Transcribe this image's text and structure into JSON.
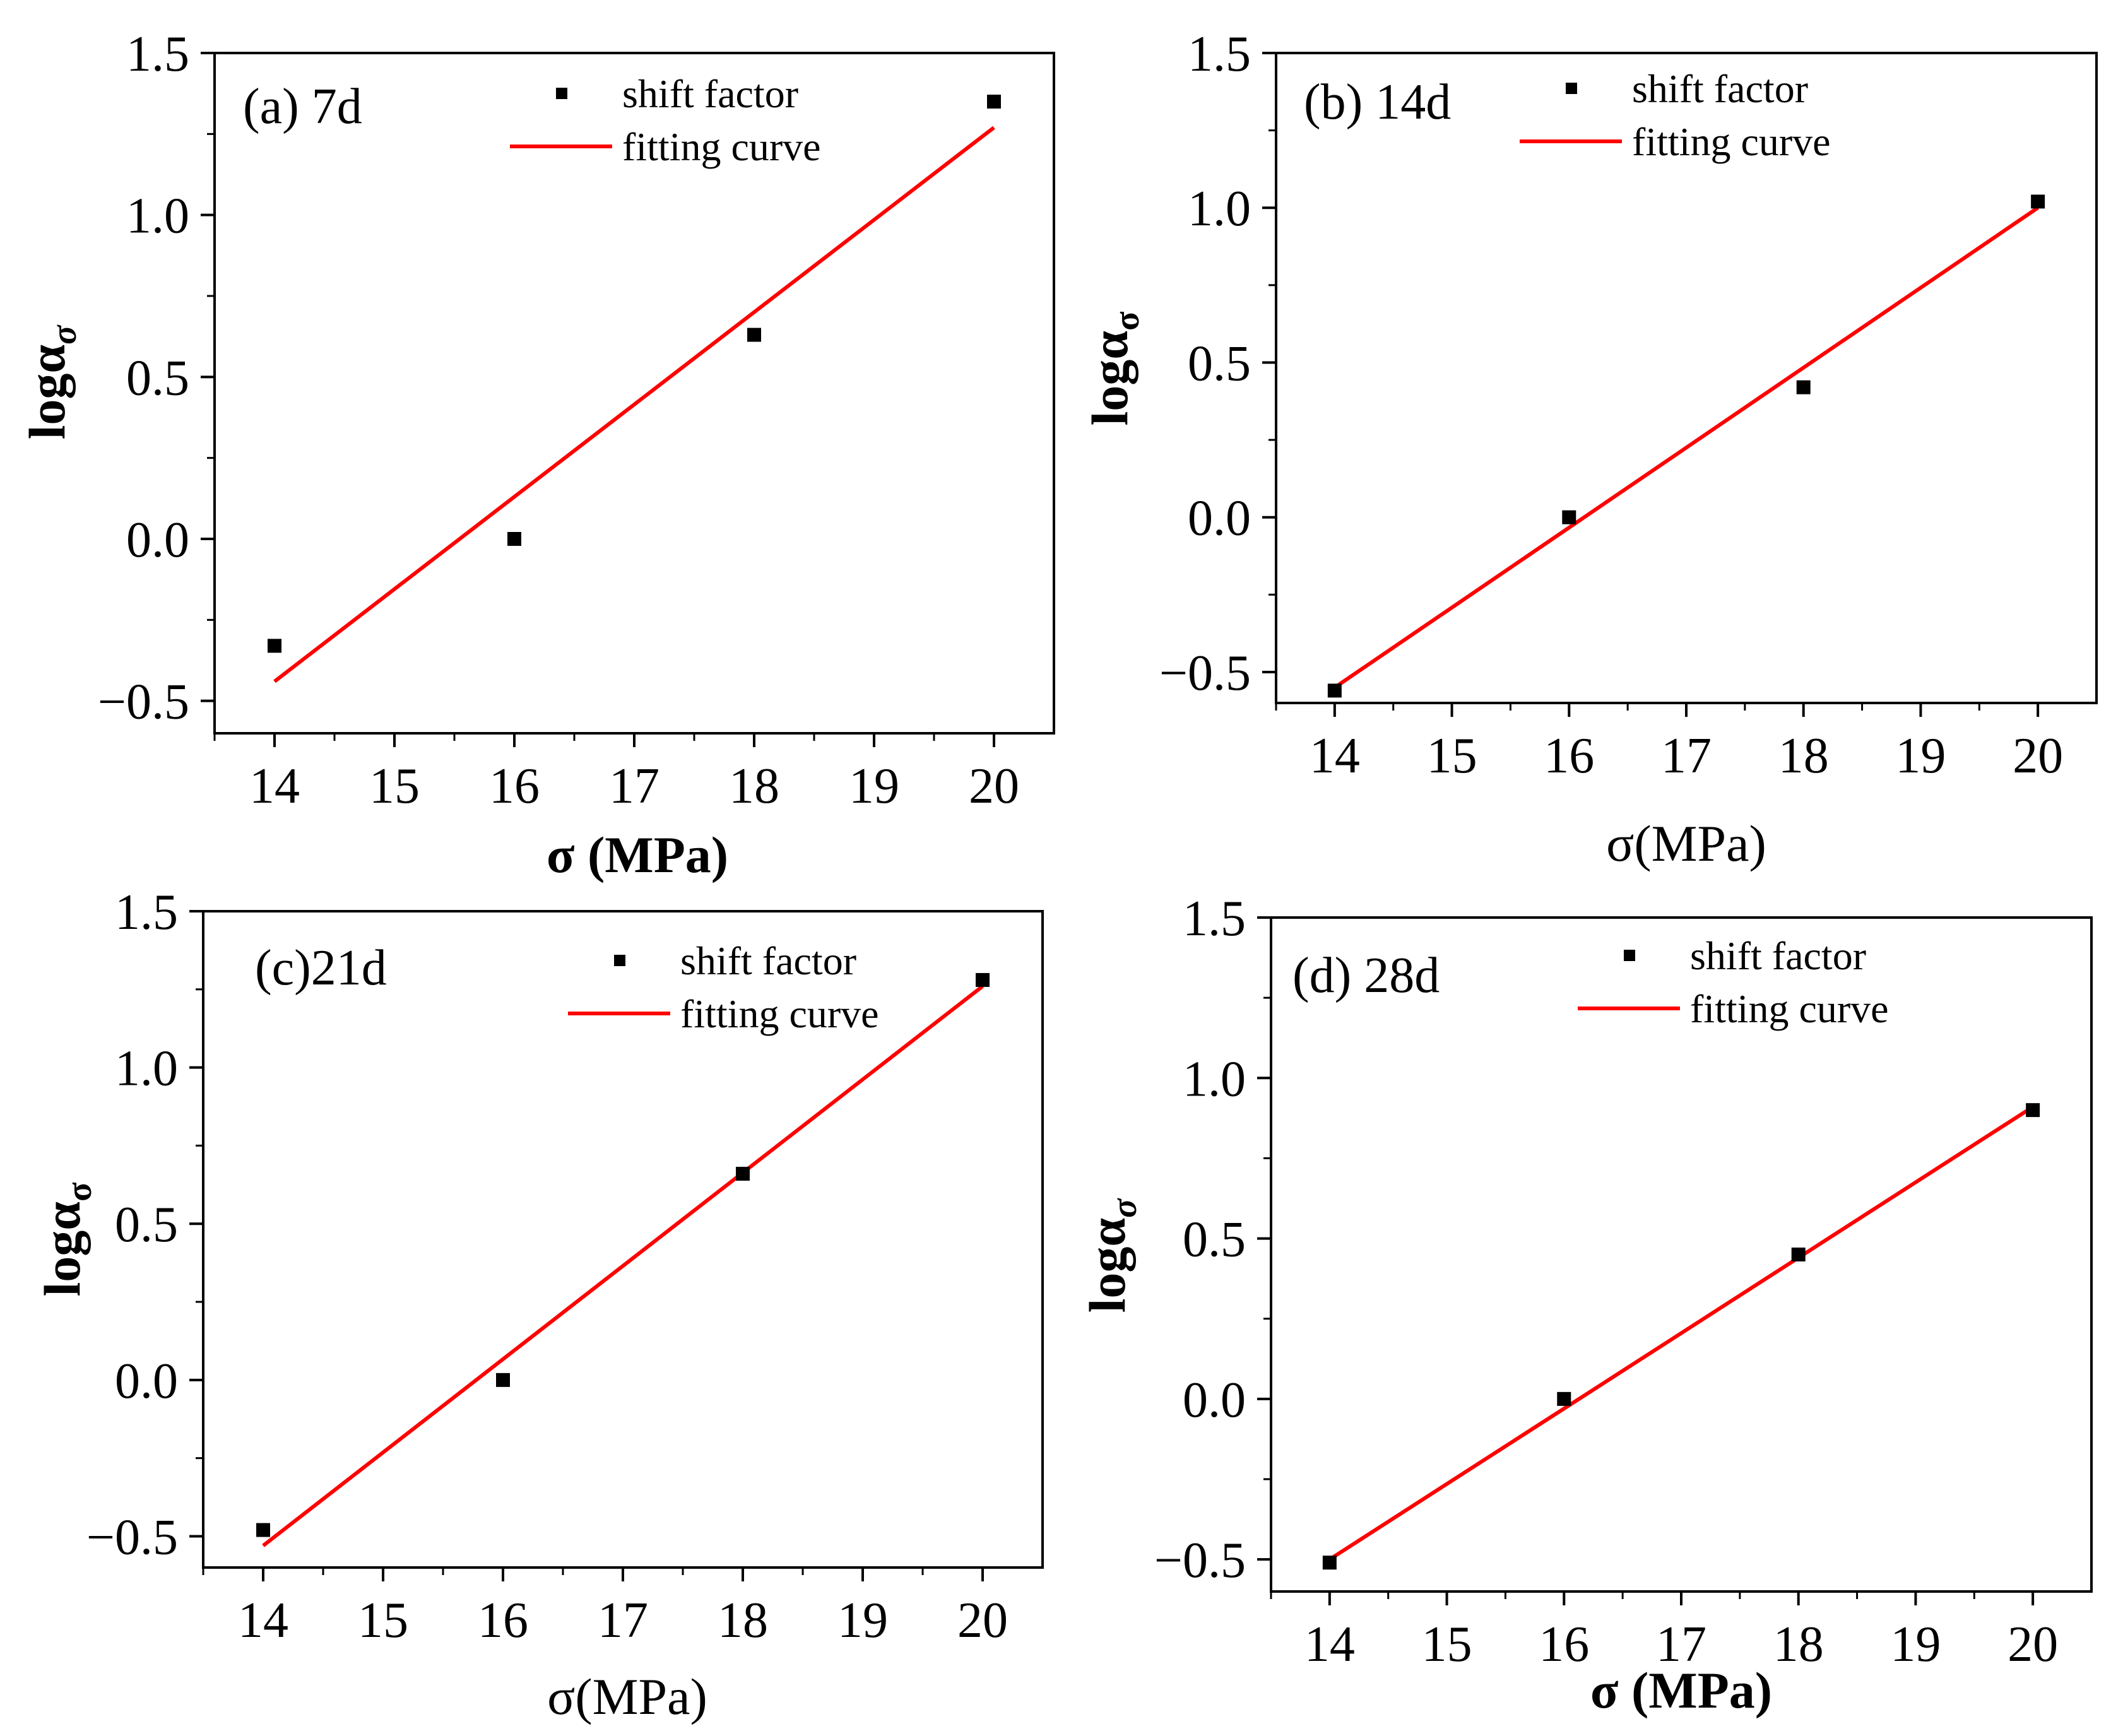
{
  "figure": {
    "colors": {
      "fit_line": "#ff0000",
      "marker": "#000000",
      "axes": "#000000",
      "background": "#ffffff"
    }
  },
  "chart_data": [
    {
      "id": "a",
      "type": "scatter",
      "panel_label": "(a) 7d",
      "xlabel": "σ (MPa)",
      "ylabel": "logα",
      "ylabel_subscript": "σ",
      "x_ticks": [
        "14",
        "15",
        "16",
        "17",
        "18",
        "19",
        "20"
      ],
      "y_ticks": [
        "−0.5",
        "0.0",
        "0.5",
        "1.0",
        "1.5"
      ],
      "xlim": [
        13.5,
        20.5
      ],
      "ylim": [
        -0.6,
        1.5
      ],
      "legend": {
        "position": "top-right",
        "entries": [
          "shift factor",
          "fitting curve"
        ]
      },
      "series": [
        {
          "name": "shift factor",
          "kind": "points",
          "x": [
            14,
            16,
            18,
            20
          ],
          "y": [
            -0.33,
            0.0,
            0.63,
            1.35
          ]
        },
        {
          "name": "fitting curve",
          "kind": "line",
          "x": [
            14,
            20
          ],
          "y": [
            -0.44,
            1.27
          ]
        }
      ]
    },
    {
      "id": "b",
      "type": "scatter",
      "panel_label": "(b) 14d",
      "xlabel": "σ(MPa)",
      "ylabel": "logα",
      "ylabel_subscript": "σ",
      "x_ticks": [
        "14",
        "15",
        "16",
        "17",
        "18",
        "19",
        "20"
      ],
      "y_ticks": [
        "−0.5",
        "0.0",
        "0.5",
        "1.0",
        "1.5"
      ],
      "xlim": [
        13.5,
        20.5
      ],
      "ylim": [
        -0.6,
        1.5
      ],
      "legend": {
        "position": "top-right",
        "entries": [
          "shift factor",
          "fitting curve"
        ]
      },
      "series": [
        {
          "name": "shift factor",
          "kind": "points",
          "x": [
            14,
            16,
            18,
            20
          ],
          "y": [
            -0.56,
            0.0,
            0.42,
            1.02
          ]
        },
        {
          "name": "fitting curve",
          "kind": "line",
          "x": [
            14,
            20
          ],
          "y": [
            -0.55,
            1.0
          ]
        }
      ]
    },
    {
      "id": "c",
      "type": "scatter",
      "panel_label": "(c)21d",
      "xlabel": "σ(MPa)",
      "ylabel": "logα",
      "ylabel_subscript": "σ",
      "x_ticks": [
        "14",
        "15",
        "16",
        "17",
        "18",
        "19",
        "20"
      ],
      "y_ticks": [
        "−0.5",
        "0.0",
        "0.5",
        "1.0",
        "1.5"
      ],
      "xlim": [
        13.5,
        20.5
      ],
      "ylim": [
        -0.6,
        1.5
      ],
      "legend": {
        "position": "top-right",
        "entries": [
          "shift factor",
          "fitting curve"
        ]
      },
      "series": [
        {
          "name": "shift factor",
          "kind": "points",
          "x": [
            14,
            16,
            18,
            20
          ],
          "y": [
            -0.48,
            0.0,
            0.66,
            1.28
          ]
        },
        {
          "name": "fitting curve",
          "kind": "line",
          "x": [
            14,
            20
          ],
          "y": [
            -0.53,
            1.26
          ]
        }
      ]
    },
    {
      "id": "d",
      "type": "scatter",
      "panel_label": "(d) 28d",
      "xlabel": "σ (MPa)",
      "ylabel": "logα",
      "ylabel_subscript": "σ",
      "x_ticks": [
        "14",
        "15",
        "16",
        "17",
        "18",
        "19",
        "20"
      ],
      "y_ticks": [
        "−0.5",
        "0.0",
        "0.5",
        "1.0",
        "1.5"
      ],
      "xlim": [
        13.5,
        20.5
      ],
      "ylim": [
        -0.6,
        1.5
      ],
      "legend": {
        "position": "top-right",
        "entries": [
          "shift factor",
          "fitting curve"
        ]
      },
      "series": [
        {
          "name": "shift factor",
          "kind": "points",
          "x": [
            14,
            16,
            18,
            20
          ],
          "y": [
            -0.51,
            0.0,
            0.45,
            0.9
          ]
        },
        {
          "name": "fitting curve",
          "kind": "line",
          "x": [
            14,
            20
          ],
          "y": [
            -0.5,
            0.91
          ]
        }
      ]
    }
  ]
}
